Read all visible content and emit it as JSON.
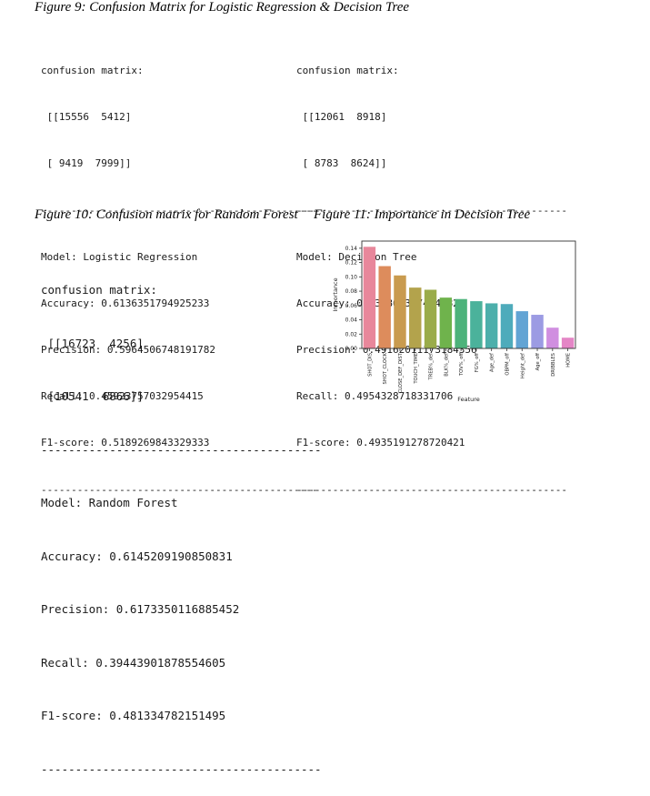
{
  "figures": {
    "fig9": {
      "caption": "Figure 9: Confusion Matrix for Logistic Regression & Decision Tree"
    },
    "fig10": {
      "caption": "Figure 10: Confusion matrix for Random Forest"
    },
    "fig11": {
      "caption": "Figure 11: Importance in Decision Tree"
    }
  },
  "outputs": {
    "logistic": {
      "cm_header": "confusion matrix:",
      "cm_row1": " [[15556  5412]",
      "cm_row2": " [ 9419  7999]]",
      "sep": "----------------------------------------------",
      "model": "Model: Logistic Regression",
      "accuracy": "Accuracy: 0.6136351794925233",
      "precision": "Precision: 0.5964506748191782",
      "recall": "Recall: 0.45923757032954415",
      "f1": "F1-score: 0.5189269843329333",
      "sep2": "----------------------------------------------"
    },
    "tree": {
      "cm_header": "confusion matrix:",
      "cm_row1": " [[12061  8918]",
      "cm_row2": " [ 8783  8624]]",
      "sep": "---------------------------------------------",
      "model": "Model: Decision Tree",
      "accuracy": "Accuracy: 0.5388683374146824",
      "precision": "Precision: 0.49162011173184356",
      "recall": "Recall: 0.4954328718331706",
      "f1": "F1-score: 0.4935191278720421",
      "sep2": "---------------------------------------------"
    },
    "forest": {
      "cm_header": "confusion matrix:",
      "cm_row1": " [[16723  4256]",
      "cm_row2": " [10541  6866]]",
      "sep": "-----------------------------------------",
      "model": "Model: Random Forest",
      "accuracy": "Accuracy: 0.6145209190850831",
      "precision": "Precision: 0.6173350116885452",
      "recall": "Recall: 0.39443901878554605",
      "f1": "F1-score: 0.481334782151495",
      "sep2": "-----------------------------------------"
    }
  },
  "chart_data": {
    "type": "bar",
    "title": "",
    "xlabel": "Feature",
    "ylabel": "Importance",
    "ylim": [
      0,
      0.15
    ],
    "yticks": [
      "0.00",
      "0.02",
      "0.04",
      "0.06",
      "0.08",
      "0.10",
      "0.12",
      "0.14"
    ],
    "categories": [
      "SHOT_DIS",
      "SHOT_CLOCK",
      "CLOSE_DEF_DIST",
      "TOUCH_TIME",
      "TREB%_def",
      "BLK%_def",
      "TOV%_off",
      "FG%_off",
      "Age_def",
      "OBPM_off",
      "Height_def",
      "Age_off",
      "DRIBBLES",
      "HOME"
    ],
    "values": [
      0.142,
      0.115,
      0.102,
      0.085,
      0.082,
      0.071,
      0.069,
      0.066,
      0.063,
      0.062,
      0.052,
      0.047,
      0.029,
      0.015
    ],
    "colors": [
      "#e8879b",
      "#dd8c5c",
      "#c99b4f",
      "#b3a34c",
      "#9aac4a",
      "#6fb34c",
      "#4db37b",
      "#4bb29b",
      "#4cafab",
      "#4eabbb",
      "#62a4d4",
      "#9c9be3",
      "#d08ee0",
      "#e486c6"
    ],
    "grid": false,
    "legend": "none"
  }
}
